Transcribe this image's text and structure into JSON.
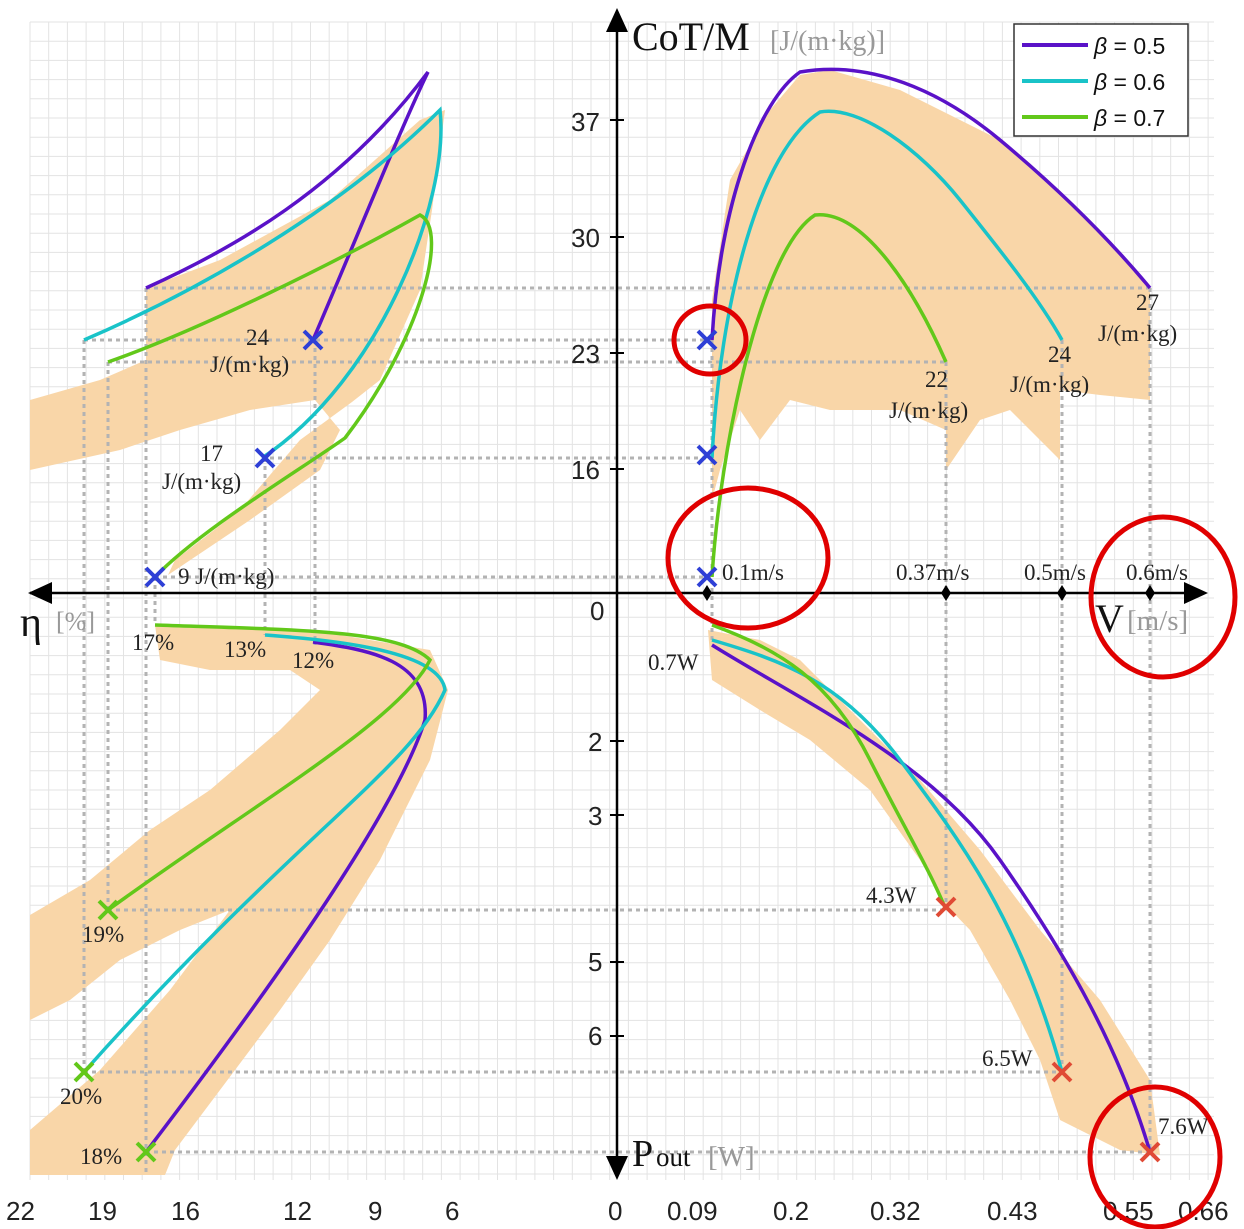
{
  "chart_data": {
    "type": "line",
    "colors": {
      "beta_0_5": "#5a12c8",
      "beta_0_6": "#19c3c8",
      "beta_0_7": "#62c81a",
      "band": "#f9d6a8",
      "grid": "#e3e3e3",
      "guide": "#b3b3b3",
      "start_marker": "#2e3fd6",
      "end_marker": "#e04a35",
      "highlight": "#e00000"
    },
    "axes": {
      "y_top_label_main": "CoT/M",
      "y_top_label_unit": "[J/(m·kg)]",
      "x_right_label_main": "V",
      "x_right_label_unit": "[m/s]",
      "x_left_label_main": "η",
      "x_left_label_unit": "[%]",
      "y_bottom_label_main": "P",
      "y_bottom_label_sub": "out",
      "y_bottom_label_unit": "[W]",
      "origin_label": "0",
      "cot_ticks": [
        "37",
        "30",
        "23",
        "16"
      ],
      "power_ticks": [
        "2",
        "3",
        "5",
        "6"
      ],
      "velocity_ticks": [
        "0",
        "0.09",
        "0.2",
        "0.32",
        "0.43",
        "0.55",
        "0.66"
      ],
      "efficiency_ticks": [
        "22",
        "19",
        "16",
        "12",
        "9",
        "6"
      ]
    },
    "legend": [
      {
        "symbol": "β",
        "text": " = 0.5"
      },
      {
        "symbol": "β",
        "text": " = 0.6"
      },
      {
        "symbol": "β",
        "text": " = 0.7"
      }
    ],
    "series": [
      {
        "name": "β = 0.5",
        "velocity_range": [
          0.1,
          0.6
        ],
        "cot_range": [
          24,
          27
        ],
        "power_range": [
          0.7,
          7.6
        ],
        "efficiency_range": [
          12,
          18
        ]
      },
      {
        "name": "β = 0.6",
        "velocity_range": [
          0.1,
          0.5
        ],
        "cot_range": [
          17,
          24
        ],
        "power_range": [
          0.7,
          6.5
        ],
        "efficiency_range": [
          13,
          20
        ]
      },
      {
        "name": "β = 0.7",
        "velocity_range": [
          0.1,
          0.37
        ],
        "cot_range": [
          9,
          22
        ],
        "power_range": [
          0.7,
          4.3
        ],
        "efficiency_range": [
          17,
          19
        ]
      }
    ],
    "annotations": {
      "cot_start_1a": "24",
      "cot_start_1b": "J/(m·kg)",
      "cot_start_2a": "17",
      "cot_start_2b": "J/(m·kg)",
      "cot_start_3": "9 J/(m·kg)",
      "cot_end_1a": "27",
      "cot_end_1b": "J/(m·kg)",
      "cot_end_2a": "24",
      "cot_end_2b": "J/(m·kg)",
      "cot_end_3a": "22",
      "cot_end_3b": "J/(m·kg)",
      "v_min": "0.1m/s",
      "v_1": "0.37m/s",
      "v_2": "0.5m/s",
      "v_3": "0.6m/s",
      "p_start": "0.7W",
      "p_1": "4.3W",
      "p_2": "6.5W",
      "p_3": "7.6W",
      "eta_start_1": "17%",
      "eta_start_2": "13%",
      "eta_start_3": "12%",
      "eta_end_1": "19%",
      "eta_end_2": "20%",
      "eta_end_3": "18%"
    }
  }
}
